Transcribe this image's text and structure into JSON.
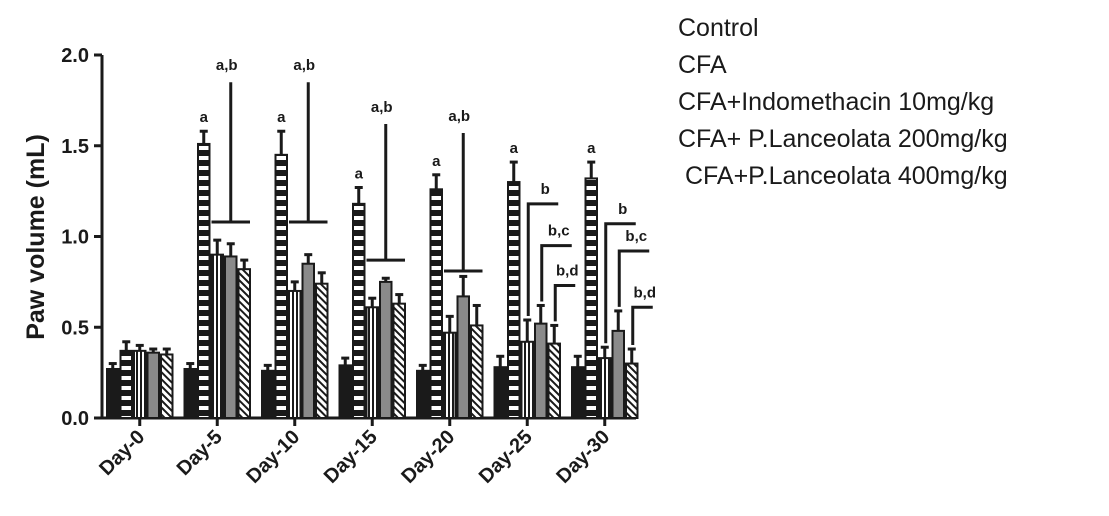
{
  "chart_data": {
    "type": "bar",
    "categories": [
      "Day-0",
      "Day-5",
      "Day-10",
      "Day-15",
      "Day-20",
      "Day-25",
      "Day-30"
    ],
    "ylabel": "Paw volume (mL)",
    "xlabel": "",
    "ylim": [
      0,
      2.0
    ],
    "yticks": [
      "0.0",
      "0.5",
      "1.0",
      "1.5",
      "2.0"
    ],
    "grid": false,
    "legend_position": "right",
    "series": [
      {
        "name": "Control",
        "pattern": "solid",
        "values": [
          0.27,
          0.27,
          0.26,
          0.29,
          0.26,
          0.28,
          0.28
        ],
        "errors": [
          0.03,
          0.03,
          0.03,
          0.04,
          0.03,
          0.06,
          0.06
        ]
      },
      {
        "name": "CFA",
        "pattern": "dashed",
        "values": [
          0.37,
          1.51,
          1.45,
          1.18,
          1.26,
          1.3,
          1.32
        ],
        "errors": [
          0.05,
          0.07,
          0.13,
          0.09,
          0.08,
          0.11,
          0.09
        ]
      },
      {
        "name": "CFA+Indomethacin 10mg/kg",
        "pattern": "vertical-stripe",
        "values": [
          0.37,
          0.9,
          0.7,
          0.61,
          0.47,
          0.42,
          0.33
        ],
        "errors": [
          0.03,
          0.08,
          0.05,
          0.05,
          0.09,
          0.12,
          0.06
        ]
      },
      {
        "name": "CFA+ P.Lanceolata 200mg/kg",
        "pattern": "grey-outline",
        "values": [
          0.36,
          0.89,
          0.85,
          0.75,
          0.67,
          0.52,
          0.48
        ],
        "errors": [
          0.02,
          0.07,
          0.05,
          0.02,
          0.11,
          0.1,
          0.11
        ]
      },
      {
        "name": " CFA+P.Lanceolata 400mg/kg",
        "pattern": "diagonal-hatch",
        "values": [
          0.35,
          0.82,
          0.74,
          0.63,
          0.51,
          0.41,
          0.3
        ],
        "errors": [
          0.03,
          0.05,
          0.06,
          0.05,
          0.11,
          0.1,
          0.08
        ]
      }
    ],
    "annotations": {
      "cfa_labels": [
        {
          "category": "Day-5",
          "text": "a"
        },
        {
          "category": "Day-10",
          "text": "a"
        },
        {
          "category": "Day-15",
          "text": "a"
        },
        {
          "category": "Day-20",
          "text": "a"
        },
        {
          "category": "Day-25",
          "text": "a"
        },
        {
          "category": "Day-30",
          "text": "a"
        }
      ],
      "group_brackets": [
        {
          "category": "Day-5",
          "text": "a,b",
          "top": 1.85,
          "bottom": 1.08
        },
        {
          "category": "Day-10",
          "text": "a,b",
          "top": 1.85,
          "bottom": 1.08
        },
        {
          "category": "Day-15",
          "text": "a,b",
          "top": 1.62,
          "bottom": 0.87
        },
        {
          "category": "Day-20",
          "text": "a,b",
          "top": 1.57,
          "bottom": 0.81
        }
      ],
      "step_brackets": [
        {
          "category": "Day-25",
          "series_index": 2,
          "text": "b",
          "level": 1.18
        },
        {
          "category": "Day-25",
          "series_index": 3,
          "text": "b,c",
          "level": 0.95
        },
        {
          "category": "Day-25",
          "series_index": 4,
          "text": "b,d",
          "level": 0.73
        },
        {
          "category": "Day-30",
          "series_index": 2,
          "text": "b",
          "level": 1.07
        },
        {
          "category": "Day-30",
          "series_index": 3,
          "text": "b,c",
          "level": 0.92
        },
        {
          "category": "Day-30",
          "series_index": 4,
          "text": "b,d",
          "level": 0.61
        }
      ]
    }
  }
}
